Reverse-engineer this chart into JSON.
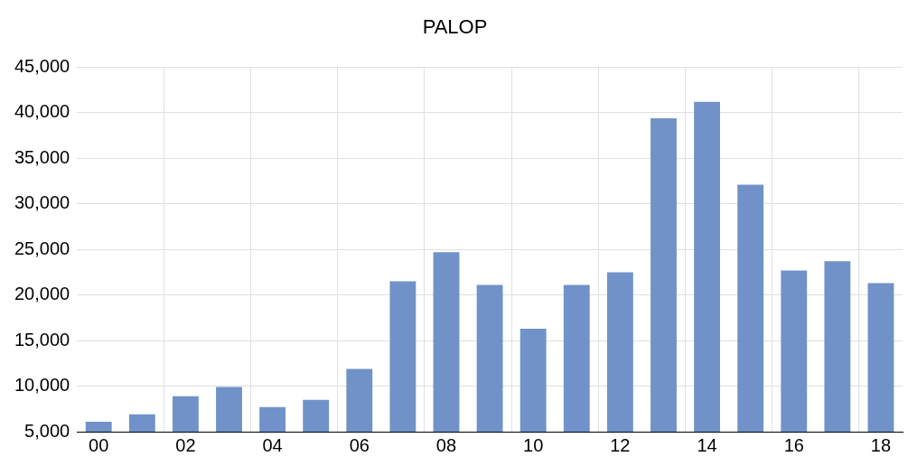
{
  "chart_data": {
    "type": "bar",
    "title": "PALOP",
    "categories": [
      "00",
      null,
      "02",
      null,
      "04",
      null,
      "06",
      null,
      "08",
      null,
      "10",
      null,
      "12",
      null,
      "14",
      null,
      "16",
      null,
      "18"
    ],
    "values": [
      6100,
      6900,
      8900,
      9900,
      7700,
      8500,
      11900,
      21500,
      24700,
      21100,
      16300,
      21100,
      22500,
      39400,
      41200,
      32100,
      22700,
      23700,
      21300
    ],
    "color": "#7092c9",
    "ylim": [
      5000,
      45000
    ],
    "yticks": [
      {
        "value": 5000,
        "label": "5,000"
      },
      {
        "value": 10000,
        "label": "10,000"
      },
      {
        "value": 15000,
        "label": "15,000"
      },
      {
        "value": 20000,
        "label": "20,000"
      },
      {
        "value": 25000,
        "label": "25,000"
      },
      {
        "value": 30000,
        "label": "30,000"
      },
      {
        "value": 35000,
        "label": "35,000"
      },
      {
        "value": 40000,
        "label": "40,000"
      },
      {
        "value": 45000,
        "label": "45,000"
      }
    ],
    "grid": true,
    "legend": false
  }
}
